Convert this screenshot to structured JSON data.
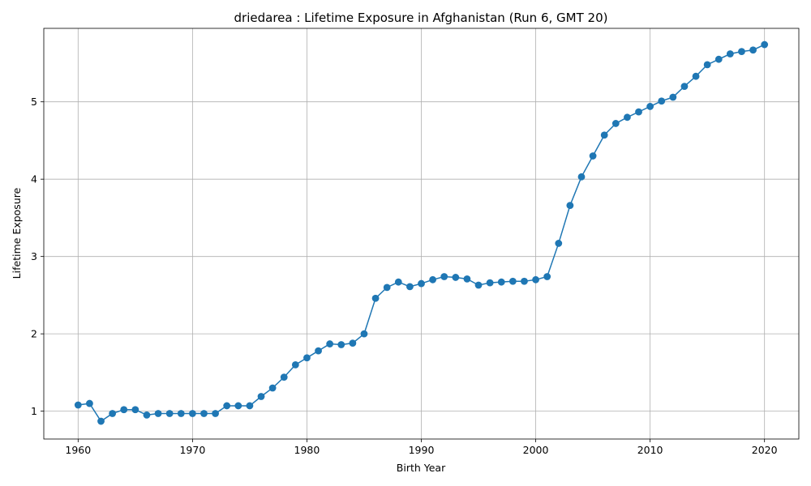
{
  "chart_data": {
    "type": "line",
    "title": "driedarea : Lifetime Exposure in Afghanistan (Run 6, GMT 20)",
    "xlabel": "Birth Year",
    "ylabel": "Lifetime Exposure",
    "xlim": [
      1957,
      2023
    ],
    "ylim": [
      0.64,
      5.95
    ],
    "xticks": [
      1960,
      1970,
      1980,
      1990,
      2000,
      2010,
      2020
    ],
    "xtick_labels": [
      "1960",
      "1970",
      "1980",
      "1990",
      "2000",
      "2010",
      "2020"
    ],
    "yticks": [
      1,
      2,
      3,
      4,
      5
    ],
    "ytick_labels": [
      "1",
      "2",
      "3",
      "4",
      "5"
    ],
    "grid": true,
    "legend": "none",
    "series": [
      {
        "color": "#1f77b4",
        "marker": "circle",
        "x": [
          1960,
          1961,
          1962,
          1963,
          1964,
          1965,
          1966,
          1967,
          1968,
          1969,
          1970,
          1971,
          1972,
          1973,
          1974,
          1975,
          1976,
          1977,
          1978,
          1979,
          1980,
          1981,
          1982,
          1983,
          1984,
          1985,
          1986,
          1987,
          1988,
          1989,
          1990,
          1991,
          1992,
          1993,
          1994,
          1995,
          1996,
          1997,
          1998,
          1999,
          2000,
          2001,
          2002,
          2003,
          2004,
          2005,
          2006,
          2007,
          2008,
          2009,
          2010,
          2011,
          2012,
          2013,
          2014,
          2015,
          2016,
          2017,
          2018,
          2019,
          2020
        ],
        "y": [
          1.08,
          1.1,
          0.87,
          0.97,
          1.02,
          1.02,
          0.95,
          0.97,
          0.97,
          0.97,
          0.97,
          0.97,
          0.97,
          1.07,
          1.07,
          1.07,
          1.19,
          1.3,
          1.44,
          1.6,
          1.69,
          1.78,
          1.87,
          1.86,
          1.88,
          2.0,
          2.46,
          2.6,
          2.67,
          2.61,
          2.65,
          2.7,
          2.74,
          2.73,
          2.71,
          2.63,
          2.66,
          2.67,
          2.68,
          2.68,
          2.7,
          2.74,
          3.17,
          3.66,
          4.03,
          4.3,
          4.57,
          4.72,
          4.8,
          4.87,
          4.94,
          5.01,
          5.06,
          5.2,
          5.33,
          5.48,
          5.55,
          5.62,
          5.65,
          5.67,
          5.74
        ]
      }
    ]
  }
}
